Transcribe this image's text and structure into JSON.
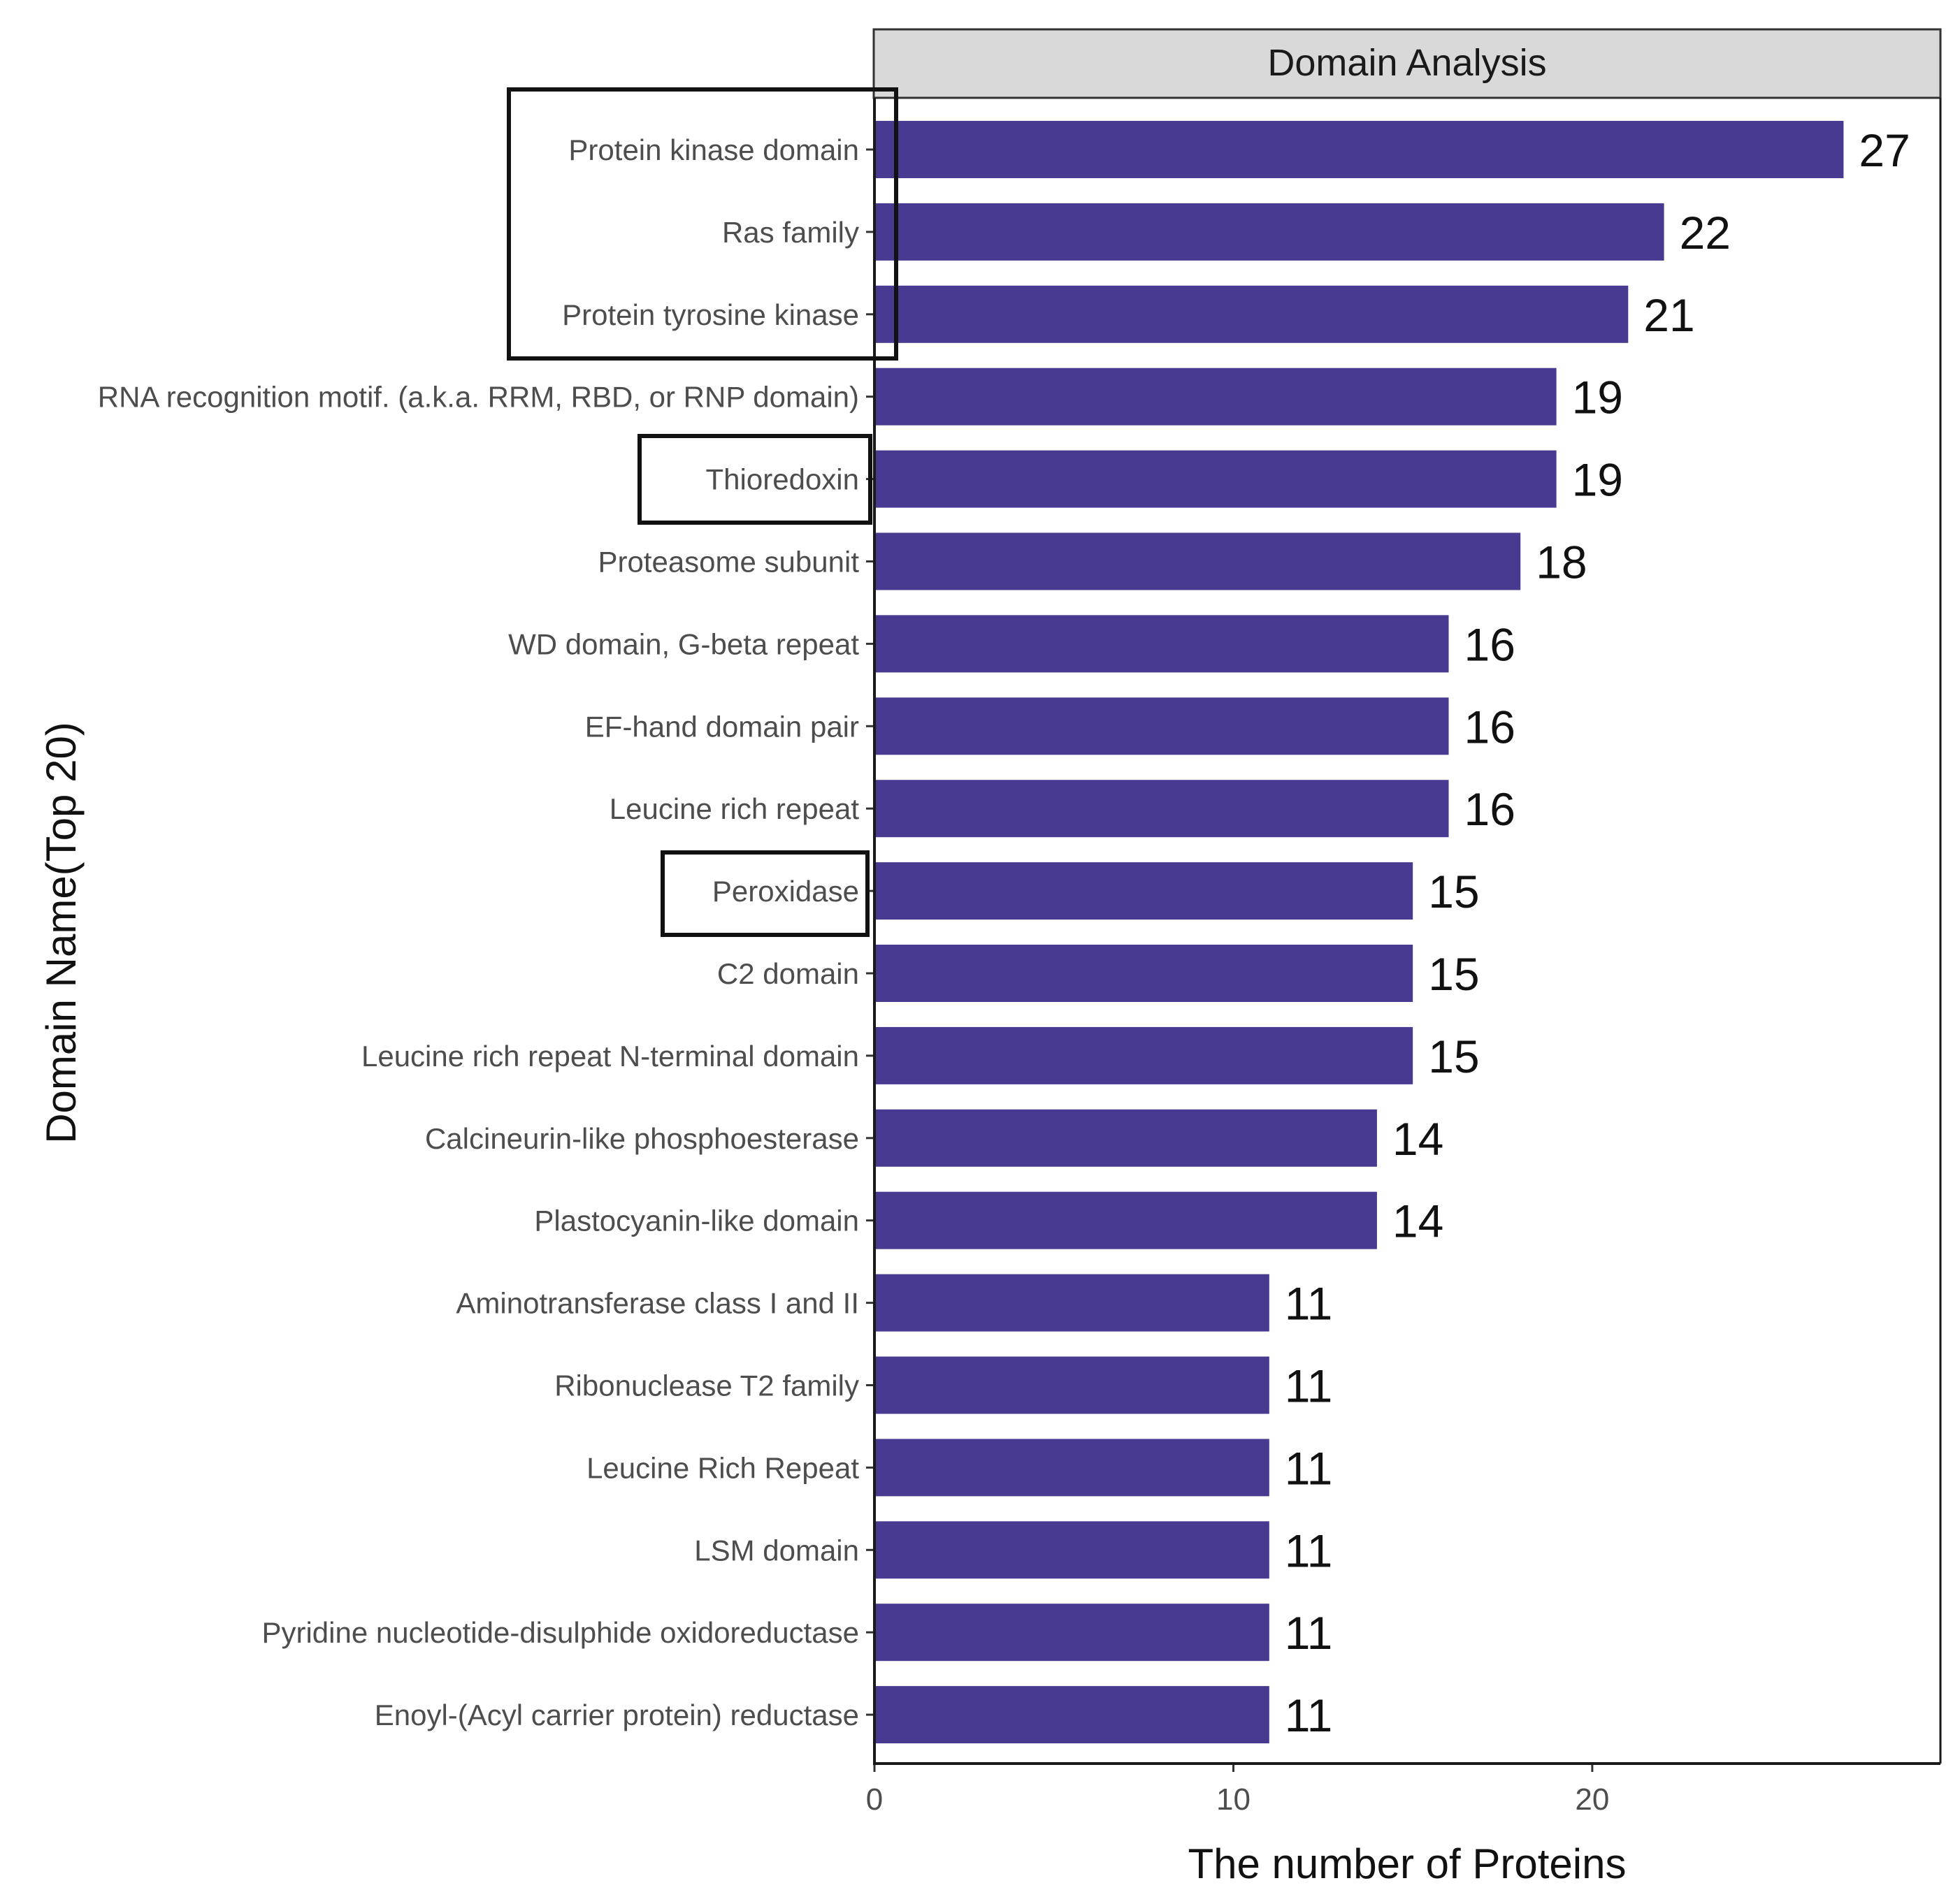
{
  "chart_data": {
    "type": "bar",
    "orientation": "horizontal",
    "facet_title": "Domain Analysis",
    "xlabel": "The number of Proteins",
    "ylabel": "Domain Name(Top 20)",
    "xlim": [
      0,
      29.7
    ],
    "xticks": [
      "0",
      "10",
      "20"
    ],
    "grid": false,
    "bar_color": "#483991",
    "categories": [
      "Protein kinase domain",
      "Ras family",
      "Protein tyrosine kinase",
      "RNA recognition motif. (a.k.a. RRM, RBD, or RNP domain)",
      "Thioredoxin",
      "Proteasome subunit",
      "WD domain, G-beta repeat",
      "EF-hand domain pair",
      "Leucine rich repeat",
      "Peroxidase",
      "C2 domain",
      "Leucine rich repeat N-terminal domain",
      "Calcineurin-like phosphoesterase",
      "Plastocyanin-like domain",
      "Aminotransferase class I and II",
      "Ribonuclease T2 family",
      "Leucine Rich Repeat",
      "LSM domain",
      "Pyridine nucleotide-disulphide oxidoreductase",
      "Enoyl-(Acyl carrier protein) reductase"
    ],
    "values": [
      27,
      22,
      21,
      19,
      19,
      18,
      16,
      16,
      16,
      15,
      15,
      15,
      14,
      14,
      11,
      11,
      11,
      11,
      11,
      11
    ],
    "value_labels": [
      "27",
      "22",
      "21",
      "19",
      "19",
      "18",
      "16",
      "16",
      "16",
      "15",
      "15",
      "15",
      "14",
      "14",
      "11",
      "11",
      "11",
      "11",
      "11",
      "11"
    ],
    "highlighted_groups": [
      [
        "Protein kinase domain",
        "Ras family",
        "Protein tyrosine kinase"
      ],
      [
        "Thioredoxin"
      ],
      [
        "Peroxidase"
      ]
    ]
  }
}
